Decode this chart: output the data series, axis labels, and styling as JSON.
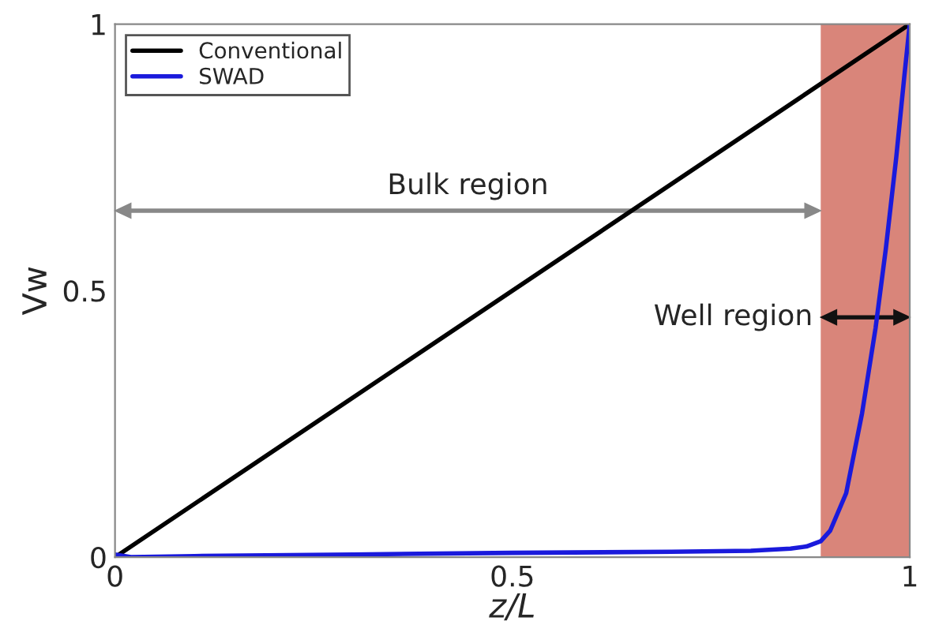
{
  "chart_data": {
    "type": "line",
    "xlabel": "z/L",
    "ylabel": "Vw",
    "xlim": [
      0,
      1
    ],
    "ylim": [
      0,
      1
    ],
    "xticks": [
      0,
      0.5,
      1
    ],
    "yticks": [
      0,
      0.5,
      1
    ],
    "grid": false,
    "legend": "top left",
    "series": [
      {
        "name": "Conventional",
        "color": "#000000",
        "x": [
          0,
          1
        ],
        "values": [
          0,
          1
        ]
      },
      {
        "name": "SWAD",
        "color": "#1a1adc",
        "x": [
          0,
          0.02,
          0.1,
          0.3,
          0.5,
          0.7,
          0.8,
          0.85,
          0.87,
          0.888,
          0.9,
          0.92,
          0.94,
          0.957,
          0.97,
          0.983,
          0.993,
          1.0
        ],
        "values": [
          0.005,
          0.0,
          0.002,
          0.005,
          0.008,
          0.01,
          0.012,
          0.016,
          0.02,
          0.03,
          0.05,
          0.12,
          0.27,
          0.43,
          0.58,
          0.75,
          0.9,
          1.0
        ]
      }
    ],
    "bands": [
      {
        "axis": "x",
        "from": 0.888,
        "to": 1.0,
        "color": "#d9857a"
      }
    ],
    "annotations": [
      "Bulk region",
      "Well region"
    ]
  }
}
